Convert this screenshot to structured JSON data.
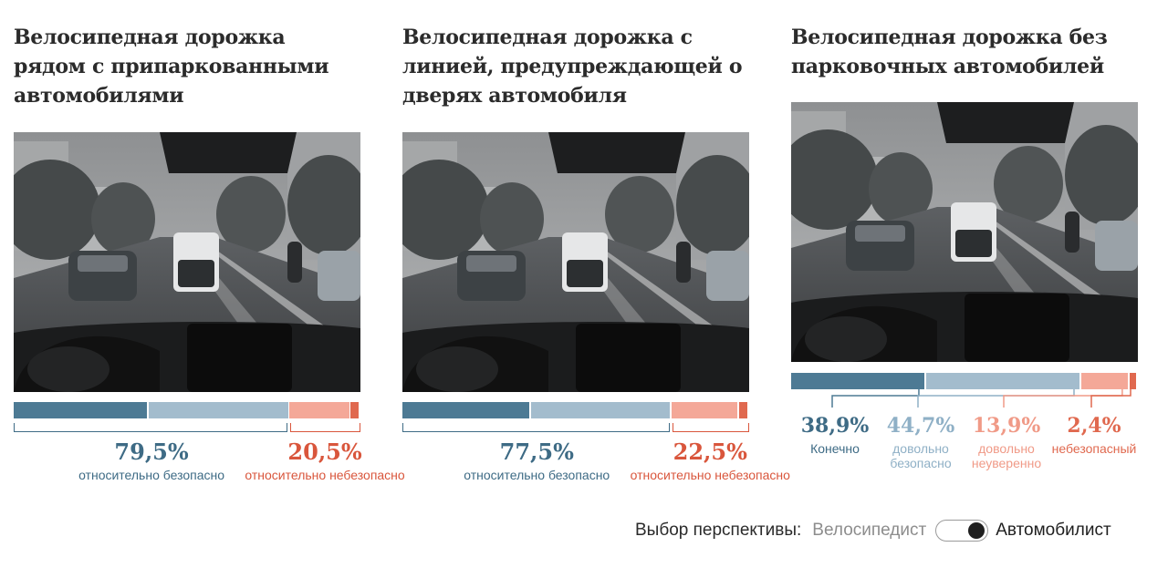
{
  "colors": {
    "very_safe": "#4d7a94",
    "fairly_safe": "#a3bccd",
    "fairly_unsure": "#f4a898",
    "unsafe": "#e0694f",
    "safe_label": "#3e6b85",
    "unsafe_label": "#d9563c",
    "title": "#2b2b2b"
  },
  "chart_data": [
    {
      "type": "bar",
      "orientation": "horizontal-stacked",
      "title": "Велосипедная дорожка рядом с припаркованными автомобилями",
      "series": [
        {
          "name": "",
          "value": 38.9
        },
        {
          "name": "",
          "value": 40.6
        },
        {
          "name": "",
          "value": 17.7
        },
        {
          "name": "",
          "value": 2.8
        }
      ],
      "groups": [
        {
          "value_label": "79,5%",
          "label": "относительно безопасно",
          "tone": "safe"
        },
        {
          "value_label": "20,5%",
          "label": "относительно небезопасно",
          "tone": "unsafe"
        }
      ]
    },
    {
      "type": "bar",
      "orientation": "horizontal-stacked",
      "title": "Велосипедная дорожка с линией, предупреждающей о дверях автомобиля",
      "series": [
        {
          "name": "",
          "value": 37.0
        },
        {
          "name": "",
          "value": 40.5
        },
        {
          "name": "",
          "value": 19.5
        },
        {
          "name": "",
          "value": 3.0
        }
      ],
      "groups": [
        {
          "value_label": "77,5%",
          "label": "относительно безопасно",
          "tone": "safe"
        },
        {
          "value_label": "22,5%",
          "label": "относительно небезопасно",
          "tone": "unsafe"
        }
      ]
    },
    {
      "type": "bar",
      "orientation": "horizontal-stacked",
      "title": "Велосипедная дорожка без парковочных автомобилей",
      "series": [
        {
          "name": "Конечно",
          "value": 38.9,
          "value_label": "38,9%"
        },
        {
          "name": "довольно безопасно",
          "value": 44.7,
          "value_label": "44,7%"
        },
        {
          "name": "довольно неуверенно",
          "value": 13.9,
          "value_label": "13,9%"
        },
        {
          "name": "небезопасный",
          "value": 2.4,
          "value_label": "2,4%"
        }
      ]
    }
  ],
  "panel3_labels": {
    "s0_line1": "Конечно",
    "s1_line1": "довольно",
    "s1_line2": "безопасно",
    "s2_line1": "довольно",
    "s2_line2": "неуверенно",
    "s3_line1": "небезопасный"
  },
  "footer": {
    "label": "Выбор перспективы:",
    "option_cyclist": "Велосипедист",
    "option_driver": "Автомобилист",
    "selected": "Автомобилист"
  }
}
